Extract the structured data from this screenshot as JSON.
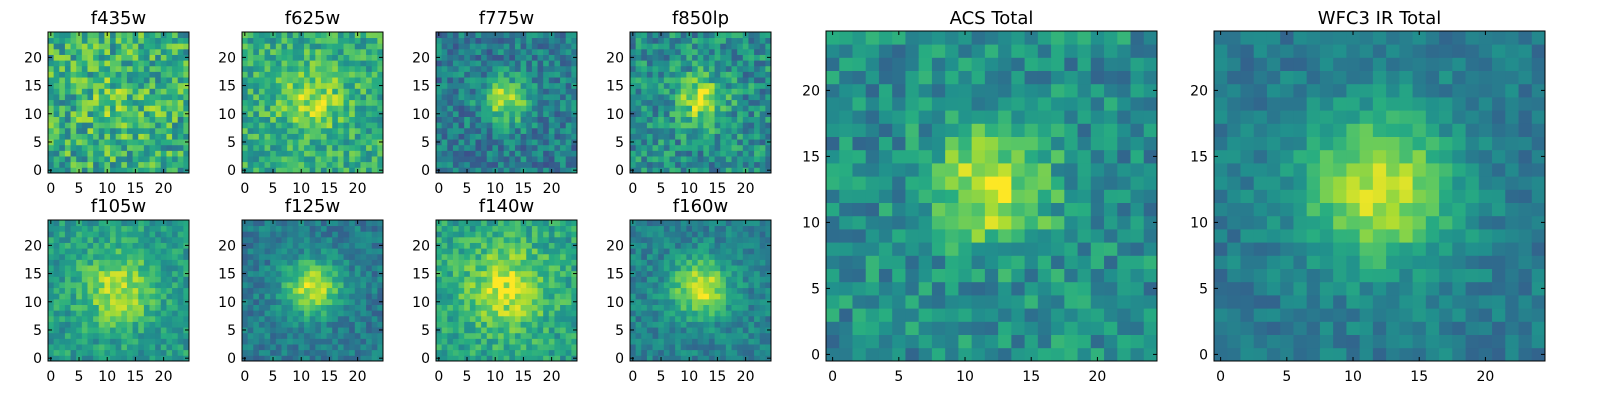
{
  "figure": {
    "image_size": 25,
    "colormap": "viridis",
    "value_range": [
      0,
      1
    ],
    "source_blob_center": [
      12,
      12.5
    ]
  },
  "chart_data": [
    {
      "type": "heatmap",
      "title": "f435w",
      "xlim": [
        -0.5,
        24.5
      ],
      "ylim": [
        -0.5,
        24.5
      ],
      "xticks": [
        0,
        5,
        10,
        15,
        20
      ],
      "yticks": [
        0,
        5,
        10,
        15,
        20
      ],
      "blob_amplitude": 0.1,
      "blob_sigma": 5,
      "background": 0.62,
      "noise": 0.24,
      "seed": 11
    },
    {
      "type": "heatmap",
      "title": "f625w",
      "xlim": [
        -0.5,
        24.5
      ],
      "ylim": [
        -0.5,
        24.5
      ],
      "xticks": [
        0,
        5,
        10,
        15,
        20
      ],
      "yticks": [
        0,
        5,
        10,
        15,
        20
      ],
      "blob_amplitude": 0.25,
      "blob_sigma": 4,
      "background": 0.62,
      "noise": 0.18,
      "seed": 22
    },
    {
      "type": "heatmap",
      "title": "f775w",
      "xlim": [
        -0.5,
        24.5
      ],
      "ylim": [
        -0.5,
        24.5
      ],
      "xticks": [
        0,
        5,
        10,
        15,
        20
      ],
      "yticks": [
        0,
        5,
        10,
        15,
        20
      ],
      "blob_amplitude": 0.45,
      "blob_sigma": 3,
      "background": 0.42,
      "noise": 0.18,
      "seed": 33
    },
    {
      "type": "heatmap",
      "title": "f850lp",
      "xlim": [
        -0.5,
        24.5
      ],
      "ylim": [
        -0.5,
        24.5
      ],
      "xticks": [
        0,
        5,
        10,
        15,
        20
      ],
      "yticks": [
        0,
        5,
        10,
        15,
        20
      ],
      "blob_amplitude": 0.4,
      "blob_sigma": 3,
      "background": 0.5,
      "noise": 0.2,
      "seed": 44
    },
    {
      "type": "heatmap",
      "title": "f105w",
      "xlim": [
        -0.5,
        24.5
      ],
      "ylim": [
        -0.5,
        24.5
      ],
      "xticks": [
        0,
        5,
        10,
        15,
        20
      ],
      "yticks": [
        0,
        5,
        10,
        15,
        20
      ],
      "blob_amplitude": 0.35,
      "blob_sigma": 4.5,
      "background": 0.55,
      "noise": 0.14,
      "seed": 55
    },
    {
      "type": "heatmap",
      "title": "f125w",
      "xlim": [
        -0.5,
        24.5
      ],
      "ylim": [
        -0.5,
        24.5
      ],
      "xticks": [
        0,
        5,
        10,
        15,
        20
      ],
      "yticks": [
        0,
        5,
        10,
        15,
        20
      ],
      "blob_amplitude": 0.5,
      "blob_sigma": 3.5,
      "background": 0.42,
      "noise": 0.12,
      "seed": 66
    },
    {
      "type": "heatmap",
      "title": "f140w",
      "xlim": [
        -0.5,
        24.5
      ],
      "ylim": [
        -0.5,
        24.5
      ],
      "xticks": [
        0,
        5,
        10,
        15,
        20
      ],
      "yticks": [
        0,
        5,
        10,
        15,
        20
      ],
      "blob_amplitude": 0.35,
      "blob_sigma": 5,
      "background": 0.58,
      "noise": 0.15,
      "seed": 77
    },
    {
      "type": "heatmap",
      "title": "f160w",
      "xlim": [
        -0.5,
        24.5
      ],
      "ylim": [
        -0.5,
        24.5
      ],
      "xticks": [
        0,
        5,
        10,
        15,
        20
      ],
      "yticks": [
        0,
        5,
        10,
        15,
        20
      ],
      "blob_amplitude": 0.5,
      "blob_sigma": 3.5,
      "background": 0.45,
      "noise": 0.12,
      "seed": 88
    },
    {
      "type": "heatmap",
      "title": "ACS Total",
      "xlim": [
        -0.5,
        24.5
      ],
      "ylim": [
        -0.5,
        24.5
      ],
      "xticks": [
        0,
        5,
        10,
        15,
        20
      ],
      "yticks": [
        0,
        5,
        10,
        15,
        20
      ],
      "blob_amplitude": 0.45,
      "blob_sigma": 3,
      "background": 0.5,
      "noise": 0.17,
      "seed": 99
    },
    {
      "type": "heatmap",
      "title": "WFC3 IR Total",
      "xlim": [
        -0.5,
        24.5
      ],
      "ylim": [
        -0.5,
        24.5
      ],
      "xticks": [
        0,
        5,
        10,
        15,
        20
      ],
      "yticks": [
        0,
        5,
        10,
        15,
        20
      ],
      "blob_amplitude": 0.5,
      "blob_sigma": 4,
      "background": 0.42,
      "noise": 0.1,
      "seed": 111
    }
  ]
}
